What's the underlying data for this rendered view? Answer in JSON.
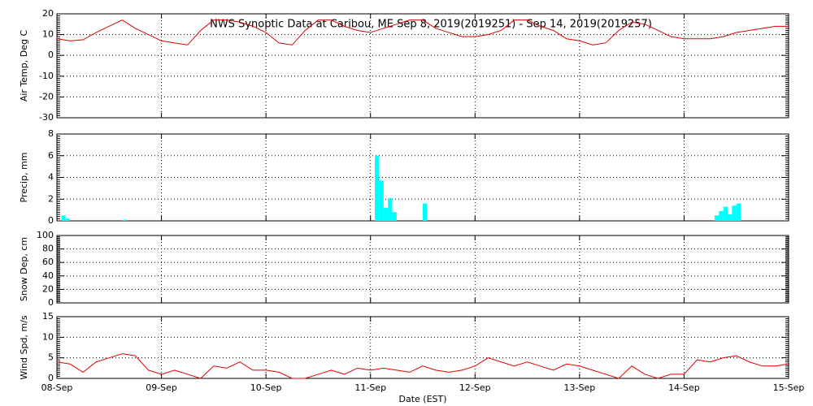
{
  "chart_data": [
    {
      "type": "line",
      "title": "NWS Synoptic Data at Caribou, ME   Sep  8, 2019(2019251) - Sep 14, 2019(2019257)",
      "ylabel": "Air Temp, Deg C",
      "color": "#e00000",
      "grid": true,
      "x": [
        0,
        3,
        6,
        9,
        12,
        15,
        18,
        21,
        24,
        27,
        30,
        33,
        36,
        39,
        42,
        45,
        48,
        51,
        54,
        57,
        60,
        63,
        66,
        69,
        72,
        75,
        78,
        81,
        84,
        87,
        90,
        93,
        96,
        99,
        102,
        105,
        108,
        111,
        114,
        117,
        120,
        123,
        126,
        129,
        132,
        135,
        138,
        141,
        144,
        147,
        150,
        153,
        156,
        159,
        162,
        165,
        168
      ],
      "values": [
        8,
        7,
        7.5,
        11,
        14,
        17,
        13,
        10,
        7,
        6,
        5,
        12,
        17,
        17,
        16,
        14,
        11,
        6,
        5,
        12,
        17,
        17,
        14,
        12,
        11,
        13,
        15,
        17,
        17,
        13,
        11,
        9,
        9,
        10,
        12,
        17,
        17,
        14,
        12,
        8,
        7,
        5,
        6,
        12,
        16,
        15,
        12,
        9,
        8,
        8,
        8,
        9,
        11,
        12,
        13,
        14,
        14
      ],
      "xlim": [
        0,
        168
      ],
      "xticks": [
        0,
        24,
        48,
        72,
        96,
        120,
        144,
        168
      ],
      "ylim": [
        -30,
        20
      ],
      "yticks": [
        -30,
        -20,
        -10,
        0,
        10,
        20
      ]
    },
    {
      "type": "bar",
      "ylabel": "Precip, mm",
      "color": "#00ffff",
      "grid": true,
      "x": [
        1,
        2,
        15,
        73,
        74,
        75,
        76,
        77,
        84,
        151,
        152,
        153,
        154,
        155,
        156
      ],
      "values": [
        0.5,
        0.2,
        0.1,
        6.0,
        3.7,
        1.2,
        2.1,
        0.8,
        1.6,
        0.5,
        0.9,
        1.3,
        0.6,
        1.4,
        1.6
      ],
      "xlim": [
        0,
        168
      ],
      "xticks": [
        0,
        24,
        48,
        72,
        96,
        120,
        144,
        168
      ],
      "ylim": [
        0,
        8
      ],
      "yticks": [
        0,
        2,
        4,
        6,
        8
      ]
    },
    {
      "type": "line",
      "ylabel": "Snow Dep, cm",
      "grid": true,
      "xlim": [
        0,
        168
      ],
      "xticks": [
        0,
        24,
        48,
        72,
        96,
        120,
        144,
        168
      ],
      "ylim": [
        0,
        100
      ],
      "yticks": [
        0,
        20,
        40,
        60,
        80,
        100
      ]
    },
    {
      "type": "line",
      "ylabel": "Wind Spd, m/s",
      "xlabel": "Date (EST)",
      "color": "#e00000",
      "grid": true,
      "x": [
        0,
        3,
        6,
        9,
        12,
        15,
        18,
        21,
        24,
        27,
        30,
        33,
        36,
        39,
        42,
        45,
        48,
        51,
        54,
        57,
        60,
        63,
        66,
        69,
        72,
        75,
        78,
        81,
        84,
        87,
        90,
        93,
        96,
        99,
        102,
        105,
        108,
        111,
        114,
        117,
        120,
        123,
        126,
        129,
        132,
        135,
        138,
        141,
        144,
        147,
        150,
        153,
        156,
        159,
        162,
        165,
        168
      ],
      "values": [
        4,
        3.5,
        1.5,
        4,
        5,
        6,
        5.5,
        2,
        1,
        2,
        1,
        0,
        3,
        2.5,
        4,
        2,
        2,
        1.5,
        0,
        0,
        1,
        2,
        1,
        2.5,
        2,
        2.5,
        2,
        1.5,
        3,
        2,
        1.5,
        2,
        3,
        5,
        4,
        3,
        4,
        3,
        2,
        3.5,
        3,
        2,
        1,
        0,
        3,
        1,
        0,
        1,
        1,
        4.5,
        4,
        5,
        5.5,
        4,
        3,
        3,
        3.5
      ],
      "xlim": [
        0,
        168
      ],
      "xticks": [
        {
          "value": 0,
          "label": "08-Sep"
        },
        {
          "value": 24,
          "label": "09-Sep"
        },
        {
          "value": 48,
          "label": "10-Sep"
        },
        {
          "value": 72,
          "label": "11-Sep"
        },
        {
          "value": 96,
          "label": "12-Sep"
        },
        {
          "value": 120,
          "label": "13-Sep"
        },
        {
          "value": 144,
          "label": "14-Sep"
        },
        {
          "value": 168,
          "label": "15-Sep"
        }
      ],
      "ylim": [
        0,
        15
      ],
      "yticks": [
        0,
        5,
        10,
        15
      ]
    }
  ]
}
